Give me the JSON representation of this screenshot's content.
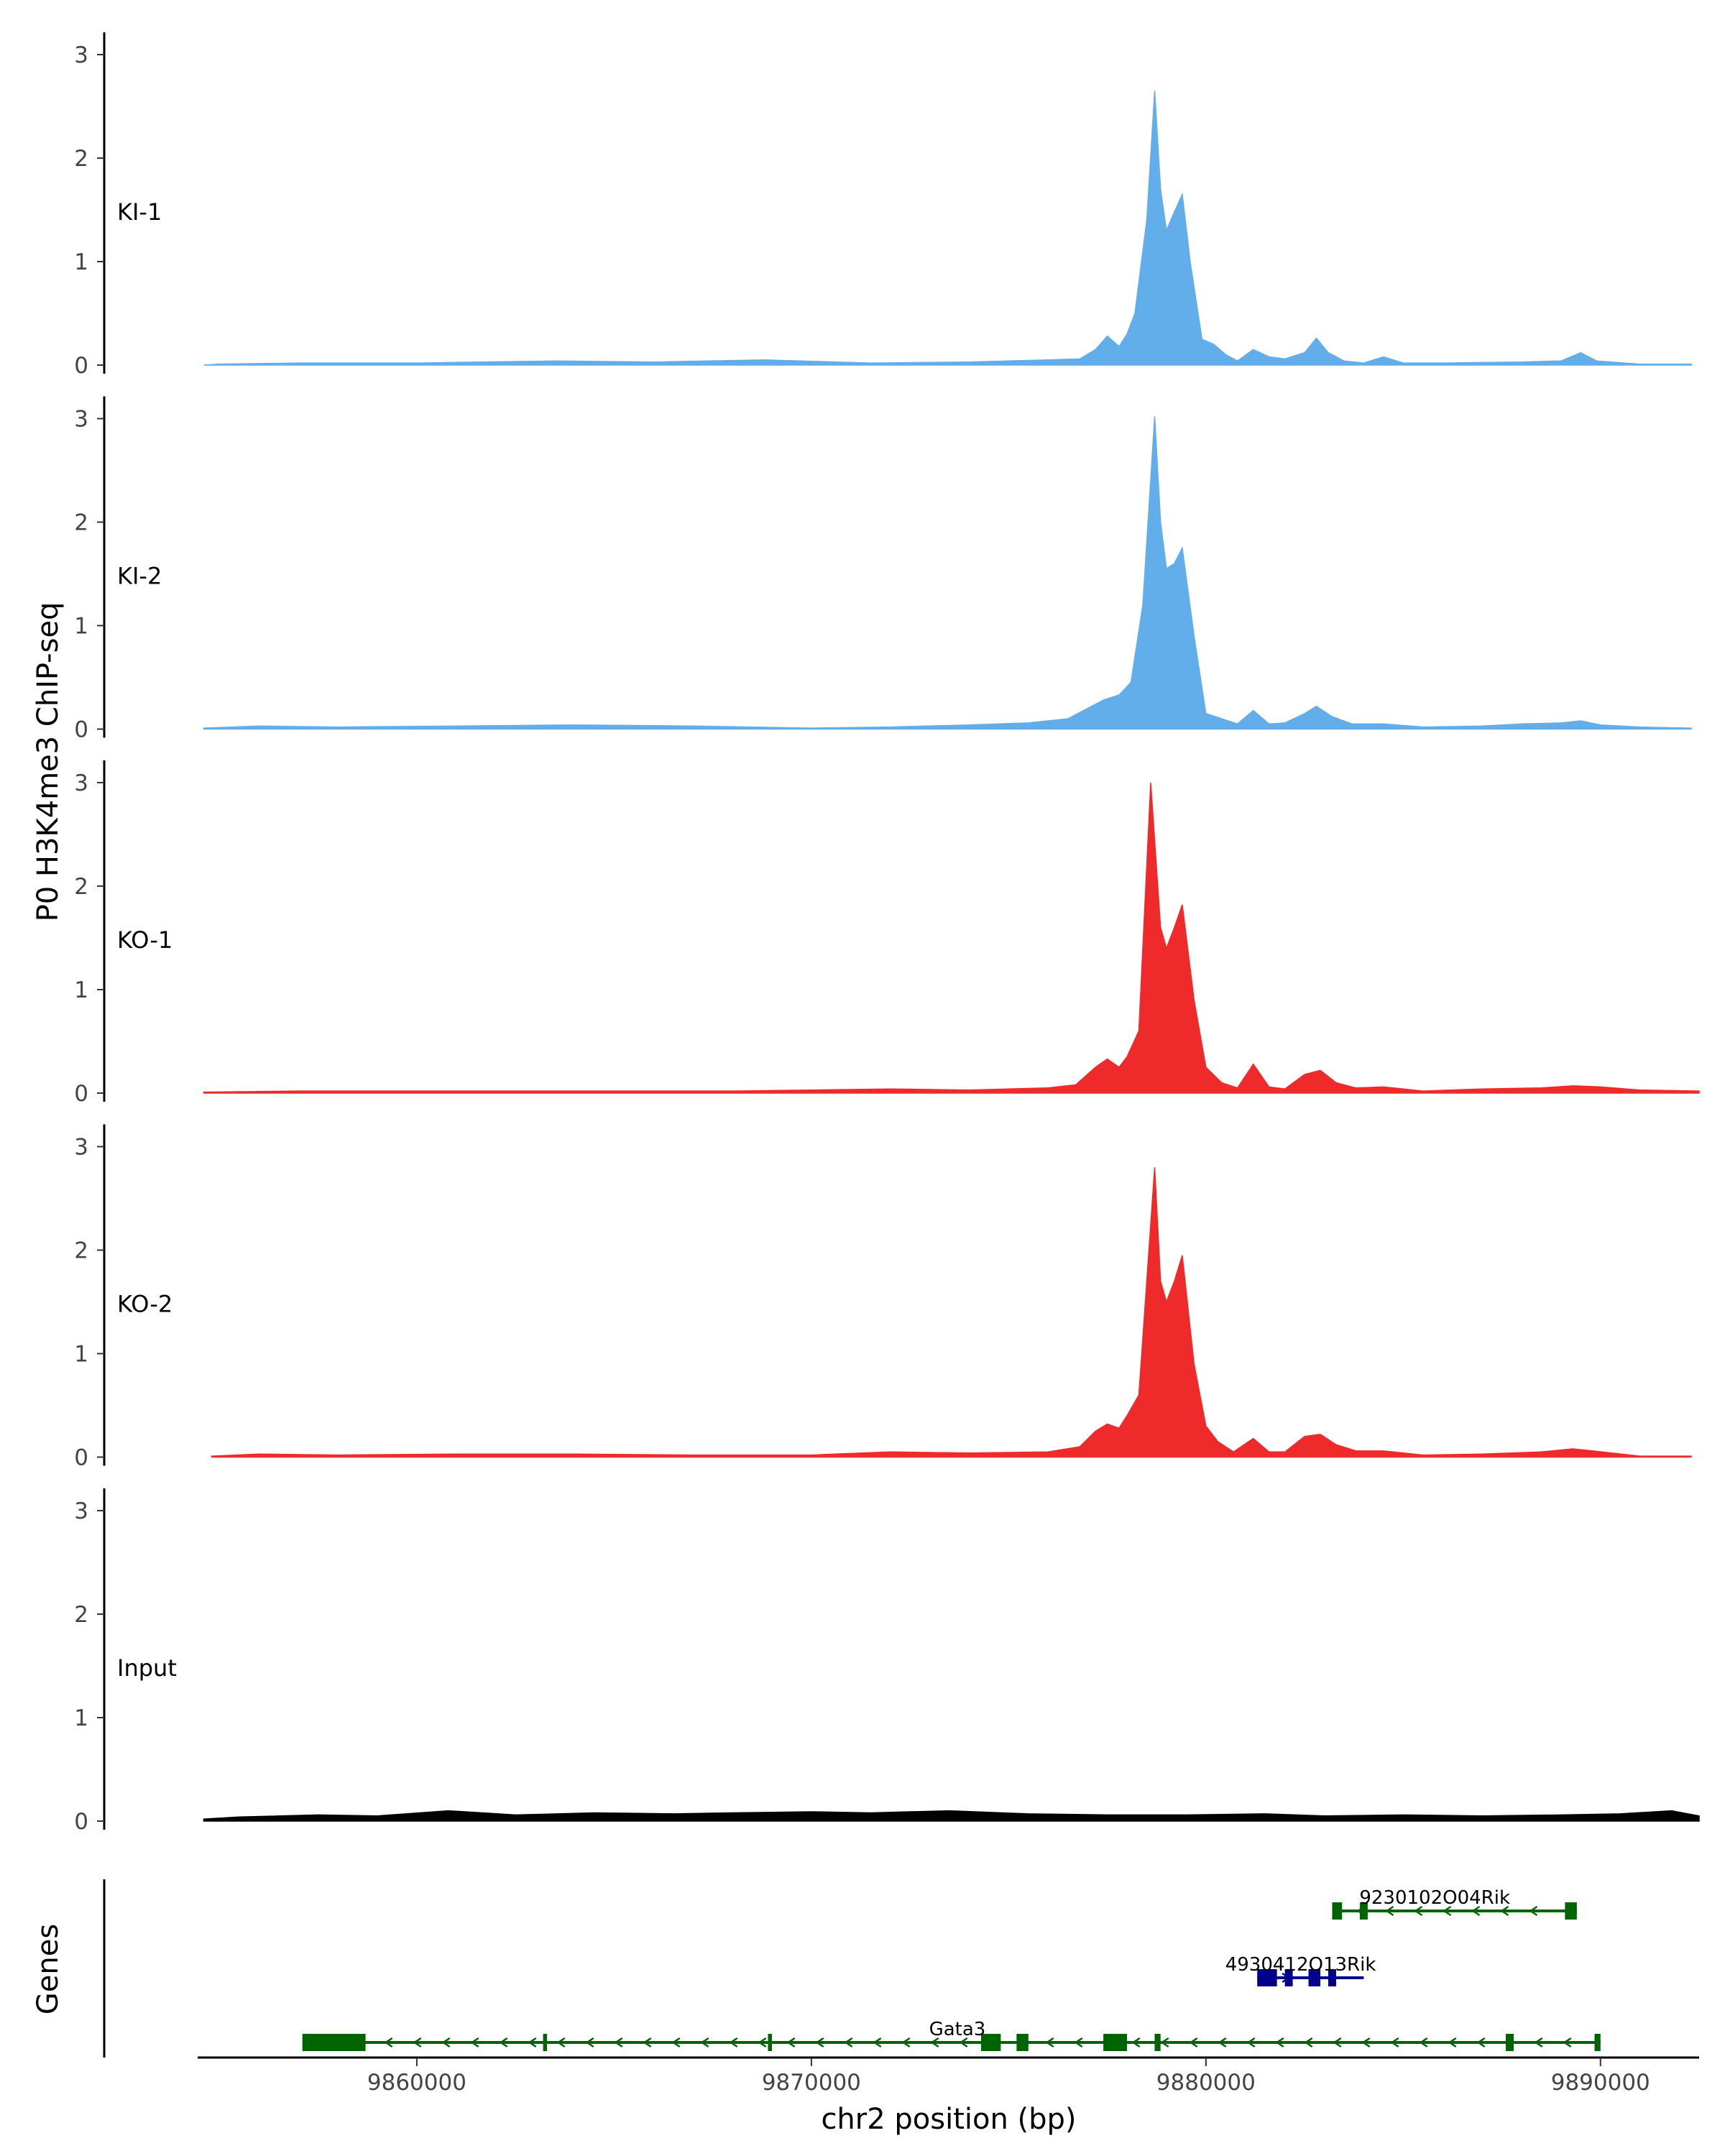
{
  "chart_data": {
    "type": "area",
    "ylabel": "P0 H3K4me3 ChIP-seq",
    "xlabel": "chr2 position (bp)",
    "xlim": [
      9854500,
      9892500
    ],
    "ylim": [
      0,
      3.2
    ],
    "y_ticks": [
      0,
      1,
      2,
      3
    ],
    "x_ticks": [
      9860000,
      9870000,
      9880000,
      9890000
    ],
    "x_tick_labels": [
      "9860000",
      "9870000",
      "9880000",
      "9890000"
    ],
    "tracks": [
      {
        "name": "KI-1",
        "color": "#62aeea",
        "points": [
          [
            9854600,
            0
          ],
          [
            9855000,
            0.01
          ],
          [
            9857000,
            0.02
          ],
          [
            9860000,
            0.02
          ],
          [
            9863500,
            0.04
          ],
          [
            9866000,
            0.03
          ],
          [
            9868800,
            0.05
          ],
          [
            9871500,
            0.02
          ],
          [
            9874000,
            0.03
          ],
          [
            9876000,
            0.05
          ],
          [
            9876800,
            0.06
          ],
          [
            9877200,
            0.15
          ],
          [
            9877500,
            0.28
          ],
          [
            9877800,
            0.18
          ],
          [
            9878000,
            0.3
          ],
          [
            9878200,
            0.5
          ],
          [
            9878500,
            1.4
          ],
          [
            9878700,
            2.65
          ],
          [
            9878850,
            1.7
          ],
          [
            9879000,
            1.3
          ],
          [
            9879200,
            1.48
          ],
          [
            9879400,
            1.65
          ],
          [
            9879600,
            1.0
          ],
          [
            9879900,
            0.25
          ],
          [
            9880200,
            0.2
          ],
          [
            9880500,
            0.1
          ],
          [
            9880800,
            0.04
          ],
          [
            9881200,
            0.15
          ],
          [
            9881600,
            0.08
          ],
          [
            9882000,
            0.06
          ],
          [
            9882500,
            0.12
          ],
          [
            9882800,
            0.26
          ],
          [
            9883100,
            0.12
          ],
          [
            9883500,
            0.04
          ],
          [
            9884000,
            0.02
          ],
          [
            9884500,
            0.08
          ],
          [
            9885000,
            0.02
          ],
          [
            9886000,
            0.02
          ],
          [
            9888000,
            0.03
          ],
          [
            9889000,
            0.04
          ],
          [
            9889500,
            0.12
          ],
          [
            9889900,
            0.04
          ],
          [
            9891000,
            0.01
          ],
          [
            9892300,
            0.01
          ]
        ]
      },
      {
        "name": "KI-2",
        "color": "#62aeea",
        "points": [
          [
            9854600,
            0.01
          ],
          [
            9856000,
            0.03
          ],
          [
            9858000,
            0.02
          ],
          [
            9861000,
            0.03
          ],
          [
            9864000,
            0.04
          ],
          [
            9867000,
            0.03
          ],
          [
            9870000,
            0.01
          ],
          [
            9872000,
            0.02
          ],
          [
            9874000,
            0.04
          ],
          [
            9875500,
            0.06
          ],
          [
            9876500,
            0.1
          ],
          [
            9877000,
            0.2
          ],
          [
            9877400,
            0.28
          ],
          [
            9877800,
            0.33
          ],
          [
            9878100,
            0.45
          ],
          [
            9878400,
            1.2
          ],
          [
            9878700,
            3.02
          ],
          [
            9878850,
            2.0
          ],
          [
            9879000,
            1.55
          ],
          [
            9879200,
            1.6
          ],
          [
            9879400,
            1.75
          ],
          [
            9879700,
            0.9
          ],
          [
            9880000,
            0.15
          ],
          [
            9880400,
            0.1
          ],
          [
            9880800,
            0.05
          ],
          [
            9881200,
            0.18
          ],
          [
            9881600,
            0.05
          ],
          [
            9882000,
            0.06
          ],
          [
            9882500,
            0.15
          ],
          [
            9882800,
            0.22
          ],
          [
            9883200,
            0.12
          ],
          [
            9883700,
            0.05
          ],
          [
            9884500,
            0.05
          ],
          [
            9885500,
            0.02
          ],
          [
            9887000,
            0.03
          ],
          [
            9888000,
            0.05
          ],
          [
            9889000,
            0.06
          ],
          [
            9889500,
            0.08
          ],
          [
            9890000,
            0.04
          ],
          [
            9891000,
            0.02
          ],
          [
            9892300,
            0.01
          ]
        ]
      },
      {
        "name": "KO-1",
        "color": "#ee2a2a",
        "points": [
          [
            9854600,
            0.01
          ],
          [
            9857000,
            0.02
          ],
          [
            9860000,
            0.02
          ],
          [
            9863500,
            0.02
          ],
          [
            9866000,
            0.02
          ],
          [
            9868000,
            0.02
          ],
          [
            9870000,
            0.03
          ],
          [
            9872000,
            0.04
          ],
          [
            9874000,
            0.03
          ],
          [
            9876000,
            0.05
          ],
          [
            9876700,
            0.08
          ],
          [
            9877200,
            0.25
          ],
          [
            9877500,
            0.33
          ],
          [
            9877800,
            0.25
          ],
          [
            9878000,
            0.35
          ],
          [
            9878300,
            0.6
          ],
          [
            9878600,
            3.0
          ],
          [
            9878850,
            1.6
          ],
          [
            9879000,
            1.4
          ],
          [
            9879200,
            1.6
          ],
          [
            9879400,
            1.82
          ],
          [
            9879700,
            0.9
          ],
          [
            9880000,
            0.25
          ],
          [
            9880400,
            0.1
          ],
          [
            9880800,
            0.05
          ],
          [
            9881200,
            0.28
          ],
          [
            9881600,
            0.06
          ],
          [
            9882000,
            0.04
          ],
          [
            9882500,
            0.18
          ],
          [
            9882900,
            0.22
          ],
          [
            9883300,
            0.1
          ],
          [
            9883800,
            0.05
          ],
          [
            9884500,
            0.06
          ],
          [
            9885500,
            0.02
          ],
          [
            9887000,
            0.04
          ],
          [
            9888500,
            0.05
          ],
          [
            9889300,
            0.07
          ],
          [
            9890000,
            0.06
          ],
          [
            9891000,
            0.03
          ],
          [
            9892500,
            0.02
          ]
        ]
      },
      {
        "name": "KO-2",
        "color": "#ee2a2a",
        "points": [
          [
            9854800,
            0.01
          ],
          [
            9856000,
            0.03
          ],
          [
            9858000,
            0.02
          ],
          [
            9861000,
            0.03
          ],
          [
            9864000,
            0.03
          ],
          [
            9867000,
            0.02
          ],
          [
            9870000,
            0.02
          ],
          [
            9872000,
            0.05
          ],
          [
            9874000,
            0.04
          ],
          [
            9876000,
            0.05
          ],
          [
            9876800,
            0.1
          ],
          [
            9877200,
            0.25
          ],
          [
            9877500,
            0.32
          ],
          [
            9877800,
            0.28
          ],
          [
            9878000,
            0.4
          ],
          [
            9878300,
            0.6
          ],
          [
            9878700,
            2.8
          ],
          [
            9878850,
            1.7
          ],
          [
            9879000,
            1.5
          ],
          [
            9879200,
            1.7
          ],
          [
            9879400,
            1.95
          ],
          [
            9879700,
            0.9
          ],
          [
            9880000,
            0.3
          ],
          [
            9880300,
            0.15
          ],
          [
            9880700,
            0.05
          ],
          [
            9881200,
            0.18
          ],
          [
            9881600,
            0.05
          ],
          [
            9882000,
            0.05
          ],
          [
            9882500,
            0.2
          ],
          [
            9882900,
            0.22
          ],
          [
            9883300,
            0.12
          ],
          [
            9883800,
            0.06
          ],
          [
            9884500,
            0.06
          ],
          [
            9885500,
            0.02
          ],
          [
            9887000,
            0.03
          ],
          [
            9888500,
            0.05
          ],
          [
            9889300,
            0.08
          ],
          [
            9889800,
            0.06
          ],
          [
            9891000,
            0.01
          ],
          [
            9892300,
            0.01
          ]
        ]
      },
      {
        "name": "Input",
        "color": "#000000",
        "points": [
          [
            9854600,
            0.02
          ],
          [
            9855500,
            0.04
          ],
          [
            9857500,
            0.06
          ],
          [
            9859000,
            0.05
          ],
          [
            9860800,
            0.1
          ],
          [
            9862500,
            0.06
          ],
          [
            9864500,
            0.08
          ],
          [
            9866500,
            0.07
          ],
          [
            9868000,
            0.08
          ],
          [
            9870000,
            0.09
          ],
          [
            9871500,
            0.08
          ],
          [
            9873500,
            0.1
          ],
          [
            9875500,
            0.07
          ],
          [
            9877500,
            0.06
          ],
          [
            9879500,
            0.06
          ],
          [
            9881500,
            0.07
          ],
          [
            9883000,
            0.05
          ],
          [
            9885000,
            0.06
          ],
          [
            9887000,
            0.05
          ],
          [
            9889000,
            0.06
          ],
          [
            9890500,
            0.07
          ],
          [
            9891800,
            0.1
          ],
          [
            9892500,
            0.05
          ]
        ]
      }
    ],
    "genes_label": "Genes",
    "genes": [
      {
        "name": "9230102O04Rik",
        "color": "#006400",
        "strand": "-",
        "start": 9883200,
        "end": 9889400,
        "label_x": 9885800,
        "exons": [
          [
            9883200,
            9883450
          ],
          [
            9883900,
            9884100
          ],
          [
            9889100,
            9889400
          ]
        ]
      },
      {
        "name": "4930412O13Rik",
        "color": "#00008b",
        "strand": "+",
        "start": 9881300,
        "end": 9884000,
        "label_x": 9882400,
        "exons": [
          [
            9881300,
            9881800
          ],
          [
            9882000,
            9882200
          ],
          [
            9882600,
            9882900
          ],
          [
            9883100,
            9883300
          ]
        ]
      },
      {
        "name": "Gata3",
        "color": "#006400",
        "strand": "-",
        "start": 9857100,
        "end": 9890000,
        "label_x": 9873700,
        "exons": [
          [
            9857100,
            9858700
          ],
          [
            9863200,
            9863300
          ],
          [
            9868900,
            9869000
          ],
          [
            9874300,
            9874800
          ],
          [
            9875200,
            9875500
          ],
          [
            9877400,
            9878000
          ],
          [
            9878700,
            9878850
          ],
          [
            9887600,
            9887800
          ],
          [
            9889850,
            9890000
          ]
        ]
      }
    ]
  }
}
